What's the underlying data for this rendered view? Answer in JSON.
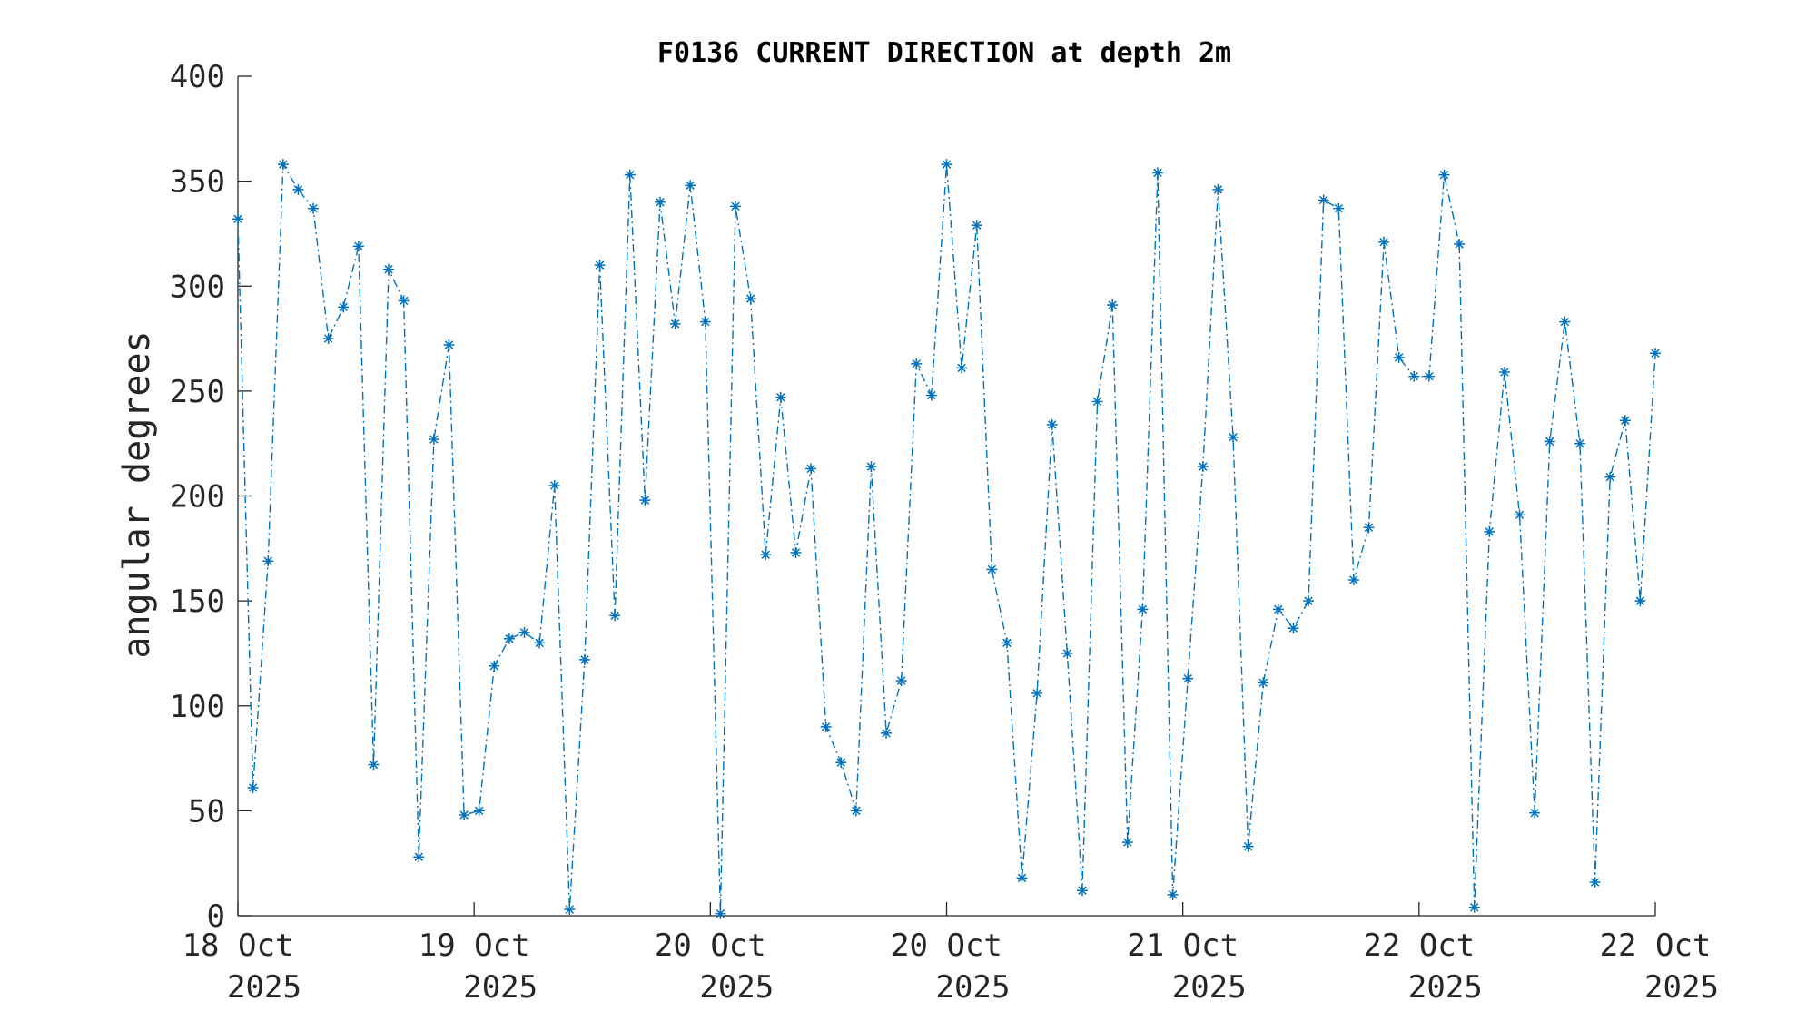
{
  "chart_data": {
    "type": "line",
    "title": "F0136 CURRENT DIRECTION at depth 2m",
    "xlabel": "",
    "ylabel": "angular degrees",
    "ylim": [
      0,
      400
    ],
    "yticks": [
      "0",
      "50",
      "100",
      "150",
      "200",
      "250",
      "300",
      "350",
      "400"
    ],
    "xticks": [
      {
        "day": "18 Oct",
        "year": "2025"
      },
      {
        "day": "19 Oct",
        "year": "2025"
      },
      {
        "day": "20 Oct",
        "year": "2025"
      },
      {
        "day": "20 Oct",
        "year": "2025"
      },
      {
        "day": "21 Oct",
        "year": "2025"
      },
      {
        "day": "22 Oct",
        "year": "2025"
      },
      {
        "day": "22 Oct",
        "year": "2025"
      }
    ],
    "grid": false,
    "line_style": "dash-dot",
    "marker": "asterisk",
    "series_color": "#0072BD",
    "series": [
      {
        "values": [
          332,
          61,
          169,
          358,
          346,
          337,
          275,
          290,
          319,
          72,
          308,
          293,
          28,
          227,
          272,
          48,
          50,
          119,
          132,
          135,
          130,
          205,
          3,
          122,
          310,
          143,
          353,
          198,
          340,
          282,
          348,
          283,
          1,
          338,
          294,
          172,
          247,
          173,
          213,
          90,
          73,
          50,
          214,
          87,
          112,
          263,
          248,
          358,
          261,
          329,
          165,
          130,
          18,
          106,
          234,
          125,
          12,
          245,
          291,
          35,
          146,
          354,
          10,
          113,
          214,
          346,
          228,
          33,
          111,
          146,
          137,
          150,
          341,
          337,
          160,
          185,
          321,
          266,
          257,
          257,
          353,
          320,
          4,
          183,
          259,
          191,
          49,
          226,
          283,
          225,
          16,
          209,
          236,
          150,
          268
        ]
      }
    ]
  }
}
